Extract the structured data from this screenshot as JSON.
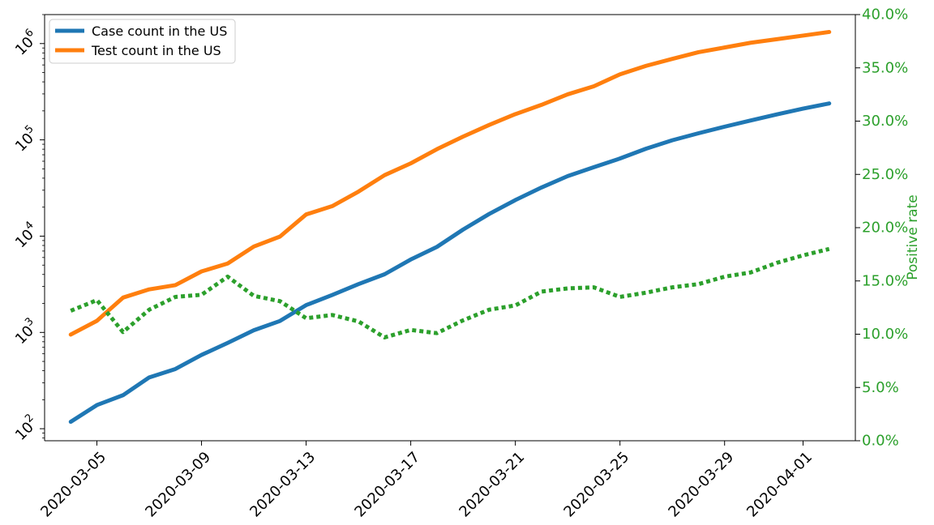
{
  "chart_data": {
    "type": "line",
    "x_type": "date",
    "dates": [
      "2020-03-04",
      "2020-03-05",
      "2020-03-06",
      "2020-03-07",
      "2020-03-08",
      "2020-03-09",
      "2020-03-10",
      "2020-03-11",
      "2020-03-12",
      "2020-03-13",
      "2020-03-14",
      "2020-03-15",
      "2020-03-16",
      "2020-03-17",
      "2020-03-18",
      "2020-03-19",
      "2020-03-20",
      "2020-03-21",
      "2020-03-22",
      "2020-03-23",
      "2020-03-24",
      "2020-03-25",
      "2020-03-26",
      "2020-03-27",
      "2020-03-28",
      "2020-03-29",
      "2020-03-30",
      "2020-03-31",
      "2020-04-01",
      "2020-04-02"
    ],
    "x_ticks": [
      "2020-03-05",
      "2020-03-09",
      "2020-03-13",
      "2020-03-17",
      "2020-03-21",
      "2020-03-25",
      "2020-03-29",
      "2020-04-01"
    ],
    "x_range": [
      "2020-03-03",
      "2020-04-03"
    ],
    "left_axis": {
      "scale": "log",
      "ylim": [
        75,
        2000000
      ],
      "tick_values": [
        100,
        1000,
        10000,
        100000,
        1000000
      ],
      "tick_labels": [
        {
          "base": "10",
          "exp": "2"
        },
        {
          "base": "10",
          "exp": "3"
        },
        {
          "base": "10",
          "exp": "4"
        },
        {
          "base": "10",
          "exp": "5"
        },
        {
          "base": "10",
          "exp": "6"
        }
      ],
      "ylabel": ""
    },
    "right_axis": {
      "scale": "linear",
      "ylim": [
        0,
        40
      ],
      "tick_values": [
        0,
        5,
        10,
        15,
        20,
        25,
        30,
        35,
        40
      ],
      "tick_labels": [
        "0.0%",
        "5.0%",
        "10.0%",
        "15.0%",
        "20.0%",
        "25.0%",
        "30.0%",
        "35.0%",
        "40.0%"
      ],
      "ylabel": "Positive rate",
      "color": "#2ca02c"
    },
    "series": [
      {
        "name": "Case count in the US",
        "axis": "left",
        "color": "#1f77b4",
        "style": "solid",
        "values": [
          118,
          176,
          223,
          341,
          417,
          584,
          778,
          1053,
          1315,
          1922,
          2450,
          3173,
          4019,
          5722,
          7730,
          11700,
          17000,
          23700,
          32000,
          42000,
          52000,
          64000,
          81000,
          99000,
          117000,
          137000,
          159000,
          184000,
          211000,
          239000
        ]
      },
      {
        "name": "Test count in the US",
        "axis": "left",
        "color": "#ff7f0e",
        "style": "solid",
        "values": [
          950,
          1320,
          2300,
          2800,
          3100,
          4300,
          5200,
          7800,
          9900,
          16800,
          20500,
          29000,
          43000,
          57000,
          80000,
          108000,
          143000,
          185000,
          231000,
          297000,
          360000,
          479000,
          587000,
          693000,
          814000,
          910000,
          1020000,
          1110000,
          1210000,
          1320000
        ]
      },
      {
        "name": "Positive rate",
        "axis": "right",
        "color": "#2ca02c",
        "style": "dotted",
        "values": [
          12.2,
          13.2,
          10.2,
          12.3,
          13.5,
          13.7,
          15.4,
          13.6,
          13.1,
          11.5,
          11.8,
          11.2,
          9.7,
          10.4,
          10.1,
          11.3,
          12.3,
          12.7,
          14.0,
          14.3,
          14.4,
          13.5,
          13.9,
          14.4,
          14.7,
          15.4,
          15.8,
          16.7,
          17.4,
          18.0
        ]
      }
    ],
    "legend": {
      "position": "top-left",
      "entries": [
        "Case count in the US",
        "Test count in the US"
      ]
    },
    "grid": false,
    "title": ""
  }
}
